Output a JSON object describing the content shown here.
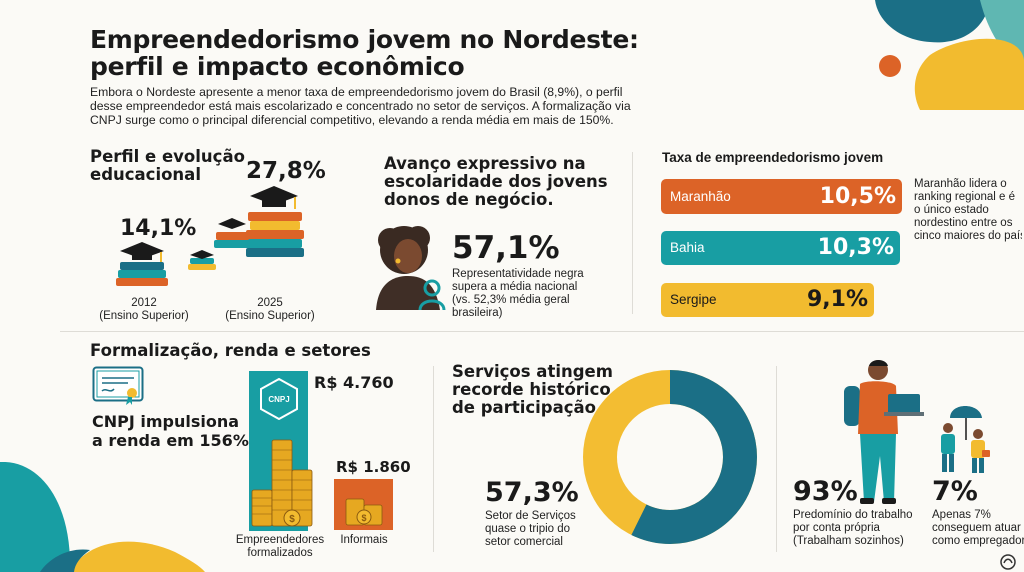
{
  "title_line1": "Empreendedorismo jovem no Nordeste:",
  "title_line2": "perfil e impacto econômico",
  "intro": [
    "Embora o Nordeste apresente a menor taxa de empreendedorismo jovem do Brasil (8,9%), o perfil",
    "desse empreendedor está mais escolarizado e concentrado no setor de serviços. A formalização via",
    "CNPJ surge como o principal diferencial competitivo, elevando a renda média em mais de 150%."
  ],
  "education": {
    "heading": [
      "Perfil e evolução",
      "educacional"
    ],
    "value_2012": "14,1%",
    "value_2025": "27,8%",
    "label_2012": [
      "2012",
      "(Ensino Superior)"
    ],
    "label_2025": [
      "2025",
      "(Ensino Superior)"
    ]
  },
  "schooling": {
    "heading": [
      "Avanço expressivo na",
      "escolaridade dos jovens",
      "donos de negócio."
    ],
    "value": "57,1%",
    "caption": [
      "Representatividade negra",
      "supera a média nacional",
      "(vs. 52,3% média geral",
      "brasileira)"
    ]
  },
  "rate": {
    "heading": "Taxa de empreendedorismo jovem",
    "items": [
      {
        "state": "Maranhão",
        "value": "10,5%",
        "color": "#dc6327"
      },
      {
        "state": "Bahia",
        "value": "10,3%",
        "color": "#189ea3"
      },
      {
        "state": "Sergipe",
        "value": "9,1%",
        "color": "#f2bb2f"
      }
    ],
    "note": [
      "Maranhão lidera o",
      "ranking regional e é",
      "o único estado",
      "nordestino entre os",
      "cinco maiores do país"
    ]
  },
  "formal": {
    "heading": "Formalização, renda e setores",
    "cnpj_text": [
      "CNPJ impulsiona",
      "a renda em 156%."
    ],
    "badge_label": "CNPJ",
    "formal_value": "R$ 4.760",
    "informal_value": "R$ 1.860",
    "formal_label": [
      "Empreendedores",
      "formalizados"
    ],
    "informal_label": "Informais"
  },
  "services": {
    "heading": [
      "Serviços atingem",
      "recorde histórico",
      "de participação"
    ],
    "value": "57,3%",
    "caption": [
      "Setor de Serviços",
      "quase o tripio do",
      "setor comercial"
    ],
    "share_pct": 57.3,
    "colors": {
      "services": "#1b6f86",
      "other": "#f3bd32"
    }
  },
  "work": {
    "own_value": "93%",
    "own_caption": [
      "Predomínio do trabalho",
      "por conta própria",
      "(Trabalham sozinhos)"
    ],
    "employer_value": "7%",
    "employer_caption": [
      "Apenas 7%",
      "conseguem atuar",
      "como empregador"
    ]
  },
  "colors": {
    "orange": "#dc6327",
    "teal": "#189ea3",
    "yellow": "#f2bb2f",
    "dark_teal": "#1b6f86"
  }
}
